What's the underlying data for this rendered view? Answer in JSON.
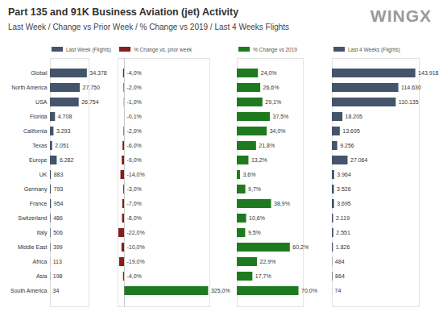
{
  "title": "Part 135 and 91K Business Aviation (jet) Activity",
  "subtitle": "Last Week / Change vs Prior Week / % Change vs 2019 / Last 4 Weeks Flights",
  "logo": "WINGX",
  "chart_data": [
    {
      "type": "bar",
      "orientation": "horizontal",
      "title": "Last Week (Flights)",
      "categories": [
        "Global",
        "North America",
        "USA",
        "Florida",
        "California",
        "Texas",
        "Europe",
        "UK",
        "Germany",
        "France",
        "Switzerland",
        "Italy",
        "Middle East",
        "Africa",
        "Asia",
        "South America"
      ],
      "values": [
        34378,
        27750,
        26754,
        4708,
        3293,
        2051,
        6282,
        883,
        793,
        954,
        486,
        506,
        399,
        113,
        198,
        34
      ],
      "value_labels": [
        "34.378",
        "27.750",
        "26.754",
        "4.708",
        "3.293",
        "2.051",
        "6.282",
        "883",
        "793",
        "954",
        "486",
        "506",
        "399",
        "113",
        "198",
        "34"
      ],
      "color": "#44546a",
      "xlim": [
        0,
        36000
      ],
      "data_labels": true,
      "tick_labels": "y"
    },
    {
      "type": "bar",
      "orientation": "horizontal",
      "title": "% Change vs. prior week",
      "categories": [
        "Global",
        "North America",
        "USA",
        "Florida",
        "California",
        "Texas",
        "Europe",
        "UK",
        "Germany",
        "France",
        "Switzerland",
        "Italy",
        "Middle East",
        "Africa",
        "Asia",
        "South America"
      ],
      "values": [
        -4.0,
        -2.0,
        -1.0,
        -0.1,
        -2.0,
        -6.0,
        -9.0,
        -14.0,
        -3.0,
        -7.0,
        -8.0,
        -22.0,
        -10.0,
        -19.0,
        -4.0,
        325.0
      ],
      "value_labels": [
        "-4,0%",
        "-2,0%",
        "-1,0%",
        "-0,1%",
        "-2,0%",
        "-6,0%",
        "-9,0%",
        "-14,0%",
        "-3,0%",
        "-7,0%",
        "-8,0%",
        "-22,0%",
        "-10,0%",
        "-19,0%",
        "-4,0%",
        "325,0%"
      ],
      "colors": [
        "#8b1c1c",
        "#8b1c1c",
        "#8b1c1c",
        "#8b1c1c",
        "#8b1c1c",
        "#8b1c1c",
        "#8b1c1c",
        "#8b1c1c",
        "#8b1c1c",
        "#8b1c1c",
        "#8b1c1c",
        "#8b1c1c",
        "#8b1c1c",
        "#8b1c1c",
        "#8b1c1c",
        "#1f7a1f"
      ],
      "xlim": [
        -25,
        330
      ],
      "data_labels": true,
      "tick_labels": false
    },
    {
      "type": "bar",
      "orientation": "horizontal",
      "title": "% Change vs 2019",
      "categories": [
        "Global",
        "North America",
        "USA",
        "Florida",
        "California",
        "Texas",
        "Europe",
        "UK",
        "Germany",
        "France",
        "Switzerland",
        "Italy",
        "Middle East",
        "Africa",
        "Asia",
        "South America"
      ],
      "values": [
        24.0,
        26.6,
        29.1,
        37.5,
        34.0,
        21.8,
        13.2,
        3.6,
        9.7,
        38.9,
        10.6,
        9.5,
        60.2,
        22.9,
        17.7,
        70.0
      ],
      "value_labels": [
        "24,0%",
        "26,6%",
        "29,1%",
        "37,5%",
        "34,0%",
        "21,8%",
        "13,2%",
        "3,6%",
        "9,7%",
        "38,9%",
        "10,6%",
        "9,5%",
        "60,2%",
        "22,9%",
        "17,7%",
        "70,0%"
      ],
      "color": "#1f7a1f",
      "xlim": [
        0,
        75
      ],
      "data_labels": true,
      "tick_labels": false
    },
    {
      "type": "bar",
      "orientation": "horizontal",
      "title": "Last 4 Weeks (Flights)",
      "categories": [
        "Global",
        "North America",
        "USA",
        "Florida",
        "California",
        "Texas",
        "Europe",
        "UK",
        "Germany",
        "France",
        "Switzerland",
        "Italy",
        "Middle East",
        "Africa",
        "Asia",
        "South America"
      ],
      "values": [
        143918,
        114630,
        110135,
        18205,
        13695,
        9256,
        27064,
        3964,
        3526,
        3695,
        2119,
        2551,
        1826,
        484,
        864,
        74
      ],
      "value_labels": [
        "143.918",
        "114.630",
        "110.135",
        "18.205",
        "13.695",
        "9.256",
        "27.064",
        "3.964",
        "3.526",
        "3.695",
        "2.119",
        "2.551",
        "1.826",
        "484",
        "864",
        "74"
      ],
      "color": "#44546a",
      "xlim": [
        0,
        150000
      ],
      "data_labels": true,
      "tick_labels": false
    }
  ]
}
